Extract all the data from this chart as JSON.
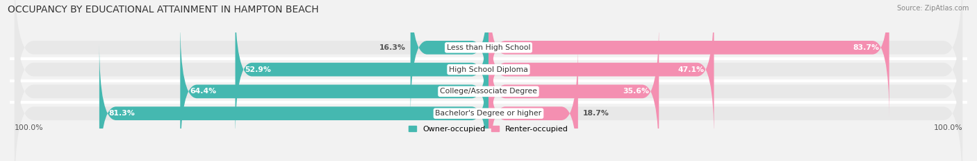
{
  "title": "OCCUPANCY BY EDUCATIONAL ATTAINMENT IN HAMPTON BEACH",
  "source": "Source: ZipAtlas.com",
  "categories": [
    "Less than High School",
    "High School Diploma",
    "College/Associate Degree",
    "Bachelor's Degree or higher"
  ],
  "owner_values": [
    16.3,
    52.9,
    64.4,
    81.3
  ],
  "renter_values": [
    83.7,
    47.1,
    35.6,
    18.7
  ],
  "owner_color": "#45b8b0",
  "renter_color": "#f48fb1",
  "bg_color": "#f2f2f2",
  "row_bg_color": "#e8e8e8",
  "row_sep_color": "#ffffff",
  "bar_height": 0.62,
  "title_fontsize": 10,
  "label_fontsize": 7.8,
  "source_fontsize": 7,
  "legend_fontsize": 8,
  "max_val": 100.0,
  "x_left_label": "100.0%",
  "x_right_label": "100.0%"
}
